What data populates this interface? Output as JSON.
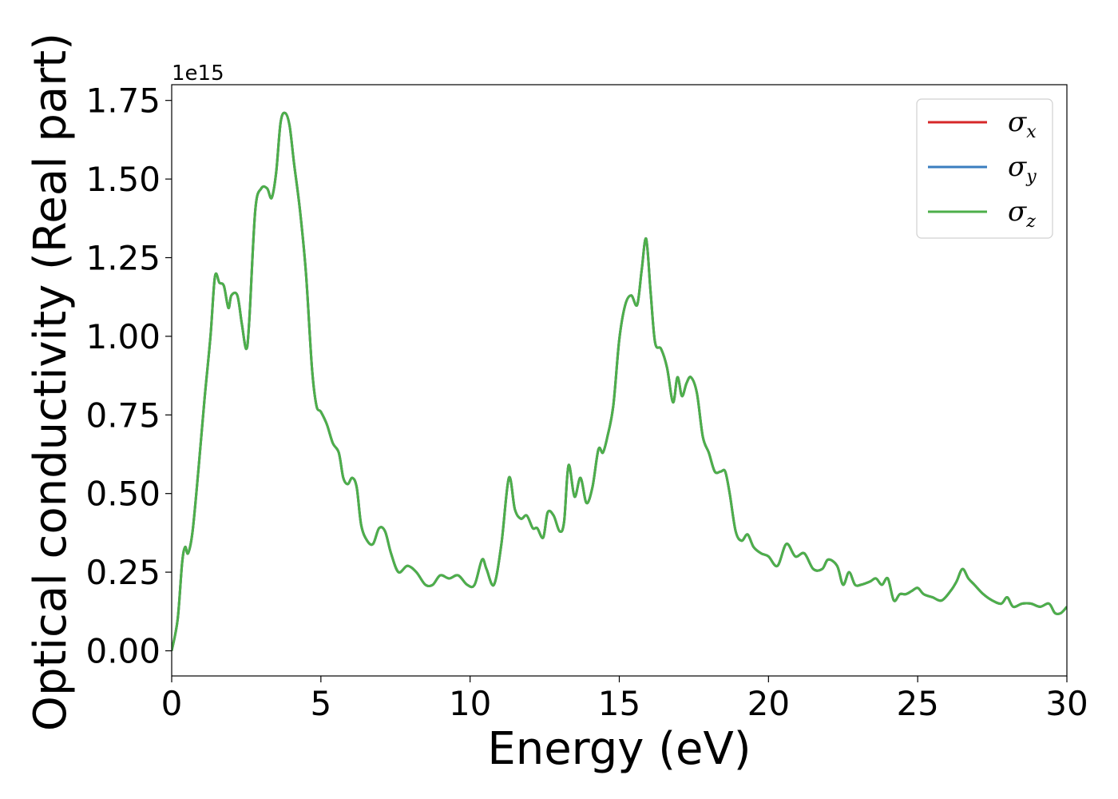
{
  "chart_data": {
    "type": "line",
    "xlabel": "Energy (eV)",
    "ylabel": "Optical conductivity (Real part)",
    "y_offset_text": "1e15",
    "y_scale": 1000000000000000.0,
    "xlim": [
      0,
      30
    ],
    "ylim": [
      -0.08,
      1.8
    ],
    "xticks": [
      0,
      5,
      10,
      15,
      20,
      25,
      30
    ],
    "xtick_labels": [
      "0",
      "5",
      "10",
      "15",
      "20",
      "25",
      "30"
    ],
    "yticks": [
      0.0,
      0.25,
      0.5,
      0.75,
      1.0,
      1.25,
      1.5,
      1.75
    ],
    "ytick_labels": [
      "0.00",
      "0.25",
      "0.50",
      "0.75",
      "1.00",
      "1.25",
      "1.50",
      "1.75"
    ],
    "grid": false,
    "legend_position": "top-right",
    "x": [
      0,
      0.2,
      0.35,
      0.45,
      0.55,
      0.7,
      0.9,
      1.1,
      1.3,
      1.45,
      1.6,
      1.75,
      1.9,
      2.0,
      2.2,
      2.35,
      2.5,
      2.6,
      2.8,
      3.0,
      3.2,
      3.35,
      3.5,
      3.65,
      3.8,
      3.95,
      4.1,
      4.3,
      4.5,
      4.7,
      4.85,
      5.0,
      5.2,
      5.4,
      5.6,
      5.75,
      5.9,
      6.05,
      6.2,
      6.35,
      6.55,
      6.75,
      6.95,
      7.15,
      7.35,
      7.6,
      7.9,
      8.2,
      8.5,
      8.75,
      9.0,
      9.3,
      9.6,
      9.9,
      10.15,
      10.4,
      10.55,
      10.8,
      11.05,
      11.3,
      11.5,
      11.7,
      11.9,
      12.1,
      12.25,
      12.45,
      12.6,
      12.8,
      13.0,
      13.15,
      13.3,
      13.5,
      13.7,
      13.9,
      14.1,
      14.3,
      14.45,
      14.6,
      14.8,
      15.0,
      15.2,
      15.4,
      15.6,
      15.75,
      15.9,
      16.05,
      16.2,
      16.4,
      16.6,
      16.8,
      16.95,
      17.1,
      17.25,
      17.4,
      17.6,
      17.8,
      18.0,
      18.2,
      18.4,
      18.55,
      18.7,
      18.9,
      19.1,
      19.3,
      19.5,
      19.75,
      20.0,
      20.3,
      20.6,
      20.9,
      21.2,
      21.5,
      21.8,
      22.0,
      22.3,
      22.5,
      22.7,
      22.9,
      23.1,
      23.4,
      23.6,
      23.8,
      24.0,
      24.2,
      24.4,
      24.6,
      24.8,
      25.0,
      25.2,
      25.5,
      25.8,
      26.1,
      26.3,
      26.5,
      26.7,
      26.9,
      27.2,
      27.5,
      27.8,
      28.0,
      28.2,
      28.5,
      28.8,
      29.1,
      29.4,
      29.6,
      29.8,
      30.0
    ],
    "series": [
      {
        "name": "σx",
        "color": "#d62728",
        "values": [
          0.0,
          0.1,
          0.28,
          0.33,
          0.31,
          0.38,
          0.58,
          0.8,
          1.0,
          1.19,
          1.17,
          1.16,
          1.09,
          1.13,
          1.13,
          1.04,
          0.96,
          1.05,
          1.4,
          1.47,
          1.47,
          1.44,
          1.52,
          1.68,
          1.71,
          1.67,
          1.55,
          1.4,
          1.2,
          0.9,
          0.78,
          0.76,
          0.72,
          0.66,
          0.63,
          0.55,
          0.53,
          0.55,
          0.52,
          0.4,
          0.35,
          0.34,
          0.39,
          0.38,
          0.31,
          0.25,
          0.27,
          0.25,
          0.21,
          0.21,
          0.24,
          0.23,
          0.24,
          0.21,
          0.21,
          0.29,
          0.26,
          0.21,
          0.34,
          0.55,
          0.45,
          0.42,
          0.43,
          0.39,
          0.39,
          0.36,
          0.44,
          0.43,
          0.38,
          0.41,
          0.59,
          0.49,
          0.55,
          0.47,
          0.52,
          0.64,
          0.63,
          0.68,
          0.78,
          0.99,
          1.1,
          1.13,
          1.1,
          1.21,
          1.31,
          1.14,
          0.98,
          0.96,
          0.9,
          0.79,
          0.87,
          0.81,
          0.85,
          0.87,
          0.82,
          0.68,
          0.63,
          0.57,
          0.57,
          0.57,
          0.5,
          0.38,
          0.35,
          0.37,
          0.33,
          0.31,
          0.3,
          0.27,
          0.34,
          0.3,
          0.31,
          0.26,
          0.26,
          0.29,
          0.27,
          0.21,
          0.25,
          0.21,
          0.21,
          0.22,
          0.23,
          0.21,
          0.23,
          0.16,
          0.18,
          0.18,
          0.19,
          0.2,
          0.18,
          0.17,
          0.16,
          0.19,
          0.22,
          0.26,
          0.23,
          0.21,
          0.18,
          0.16,
          0.15,
          0.17,
          0.14,
          0.15,
          0.15,
          0.14,
          0.15,
          0.12,
          0.12,
          0.14
        ]
      },
      {
        "name": "σy",
        "color": "#3a7ebf",
        "values": [
          0.0,
          0.1,
          0.28,
          0.33,
          0.31,
          0.38,
          0.58,
          0.8,
          1.0,
          1.19,
          1.17,
          1.16,
          1.09,
          1.13,
          1.13,
          1.04,
          0.96,
          1.05,
          1.4,
          1.47,
          1.47,
          1.44,
          1.52,
          1.68,
          1.71,
          1.67,
          1.55,
          1.4,
          1.2,
          0.9,
          0.78,
          0.76,
          0.72,
          0.66,
          0.63,
          0.55,
          0.53,
          0.55,
          0.52,
          0.4,
          0.35,
          0.34,
          0.39,
          0.38,
          0.31,
          0.25,
          0.27,
          0.25,
          0.21,
          0.21,
          0.24,
          0.23,
          0.24,
          0.21,
          0.21,
          0.29,
          0.26,
          0.21,
          0.34,
          0.55,
          0.45,
          0.42,
          0.43,
          0.39,
          0.39,
          0.36,
          0.44,
          0.43,
          0.38,
          0.41,
          0.59,
          0.49,
          0.55,
          0.47,
          0.52,
          0.64,
          0.63,
          0.68,
          0.78,
          0.99,
          1.1,
          1.13,
          1.1,
          1.21,
          1.31,
          1.14,
          0.98,
          0.96,
          0.9,
          0.79,
          0.87,
          0.81,
          0.85,
          0.87,
          0.82,
          0.68,
          0.63,
          0.57,
          0.57,
          0.57,
          0.5,
          0.38,
          0.35,
          0.37,
          0.33,
          0.31,
          0.3,
          0.27,
          0.34,
          0.3,
          0.31,
          0.26,
          0.26,
          0.29,
          0.27,
          0.21,
          0.25,
          0.21,
          0.21,
          0.22,
          0.23,
          0.21,
          0.23,
          0.16,
          0.18,
          0.18,
          0.19,
          0.2,
          0.18,
          0.17,
          0.16,
          0.19,
          0.22,
          0.26,
          0.23,
          0.21,
          0.18,
          0.16,
          0.15,
          0.17,
          0.14,
          0.15,
          0.15,
          0.14,
          0.15,
          0.12,
          0.12,
          0.14
        ]
      },
      {
        "name": "σz",
        "color": "#4daf4a",
        "values": [
          0.0,
          0.1,
          0.28,
          0.33,
          0.31,
          0.38,
          0.58,
          0.8,
          1.0,
          1.19,
          1.17,
          1.16,
          1.09,
          1.13,
          1.13,
          1.04,
          0.96,
          1.05,
          1.4,
          1.47,
          1.47,
          1.44,
          1.52,
          1.68,
          1.71,
          1.67,
          1.55,
          1.4,
          1.2,
          0.9,
          0.78,
          0.76,
          0.72,
          0.66,
          0.63,
          0.55,
          0.53,
          0.55,
          0.52,
          0.4,
          0.35,
          0.34,
          0.39,
          0.38,
          0.31,
          0.25,
          0.27,
          0.25,
          0.21,
          0.21,
          0.24,
          0.23,
          0.24,
          0.21,
          0.21,
          0.29,
          0.26,
          0.21,
          0.34,
          0.55,
          0.45,
          0.42,
          0.43,
          0.39,
          0.39,
          0.36,
          0.44,
          0.43,
          0.38,
          0.41,
          0.59,
          0.49,
          0.55,
          0.47,
          0.52,
          0.64,
          0.63,
          0.68,
          0.78,
          0.99,
          1.1,
          1.13,
          1.1,
          1.21,
          1.31,
          1.14,
          0.98,
          0.96,
          0.9,
          0.79,
          0.87,
          0.81,
          0.85,
          0.87,
          0.82,
          0.68,
          0.63,
          0.57,
          0.57,
          0.57,
          0.5,
          0.38,
          0.35,
          0.37,
          0.33,
          0.31,
          0.3,
          0.27,
          0.34,
          0.3,
          0.31,
          0.26,
          0.26,
          0.29,
          0.27,
          0.21,
          0.25,
          0.21,
          0.21,
          0.22,
          0.23,
          0.21,
          0.23,
          0.16,
          0.18,
          0.18,
          0.19,
          0.2,
          0.18,
          0.17,
          0.16,
          0.19,
          0.22,
          0.26,
          0.23,
          0.21,
          0.18,
          0.16,
          0.15,
          0.17,
          0.14,
          0.15,
          0.15,
          0.14,
          0.15,
          0.12,
          0.12,
          0.14
        ]
      }
    ]
  },
  "legend": {
    "items": [
      {
        "symbol": "σ",
        "sub": "x",
        "color": "#d62728"
      },
      {
        "symbol": "σ",
        "sub": "y",
        "color": "#3a7ebf"
      },
      {
        "symbol": "σ",
        "sub": "z",
        "color": "#4daf4a"
      }
    ]
  }
}
